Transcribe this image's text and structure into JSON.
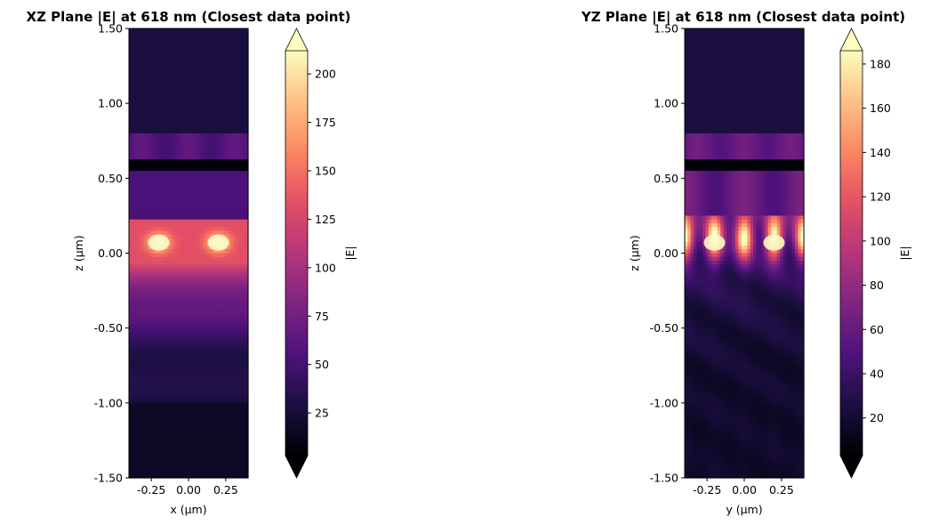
{
  "chart_data": [
    {
      "type": "heatmap",
      "title": "XZ Plane |E| at 618 nm (Closest data point)",
      "xlabel": "x (µm)",
      "ylabel": "z (µm)",
      "xlim": [
        -0.4,
        0.4
      ],
      "ylim": [
        -1.5,
        1.5
      ],
      "xticks": [
        -0.25,
        0.0,
        0.25
      ],
      "xtick_labels": [
        "-0.25",
        "0.00",
        "0.25"
      ],
      "yticks": [
        -1.5,
        -1.0,
        -0.5,
        0.0,
        0.5,
        1.0,
        1.5
      ],
      "ytick_labels": [
        "-1.50",
        "-1.00",
        "-0.50",
        "0.00",
        "0.50",
        "1.00",
        "1.50"
      ],
      "colormap": "magma",
      "colorbar": {
        "label": "|E|",
        "min": 3,
        "max": 212,
        "ticks": [
          25,
          50,
          75,
          100,
          125,
          150,
          175,
          200
        ],
        "tick_labels": [
          "25",
          "50",
          "75",
          "100",
          "125",
          "150",
          "175",
          "200"
        ],
        "extend": "both"
      },
      "hotspots_x": [
        -0.2,
        0.2
      ],
      "hotspot_z": 0.07
    },
    {
      "type": "heatmap",
      "title": "YZ Plane |E| at 618 nm (Closest data point)",
      "xlabel": "y (µm)",
      "ylabel": "z (µm)",
      "xlim": [
        -0.4,
        0.4
      ],
      "ylim": [
        -1.5,
        1.5
      ],
      "xticks": [
        -0.25,
        0.0,
        0.25
      ],
      "xtick_labels": [
        "-0.25",
        "0.00",
        "0.25"
      ],
      "yticks": [
        -1.5,
        -1.0,
        -0.5,
        0.0,
        0.5,
        1.0,
        1.5
      ],
      "ytick_labels": [
        "-1.50",
        "-1.00",
        "-0.50",
        "0.00",
        "0.50",
        "1.00",
        "1.50"
      ],
      "colormap": "magma",
      "colorbar": {
        "label": "|E|",
        "min": 3,
        "max": 186,
        "ticks": [
          20,
          40,
          60,
          80,
          100,
          120,
          140,
          160,
          180
        ],
        "tick_labels": [
          "20",
          "40",
          "60",
          "80",
          "100",
          "120",
          "140",
          "160",
          "180"
        ],
        "extend": "both"
      },
      "hotspots_x": [
        -0.2,
        0.2
      ],
      "hotspot_z": 0.07
    }
  ]
}
